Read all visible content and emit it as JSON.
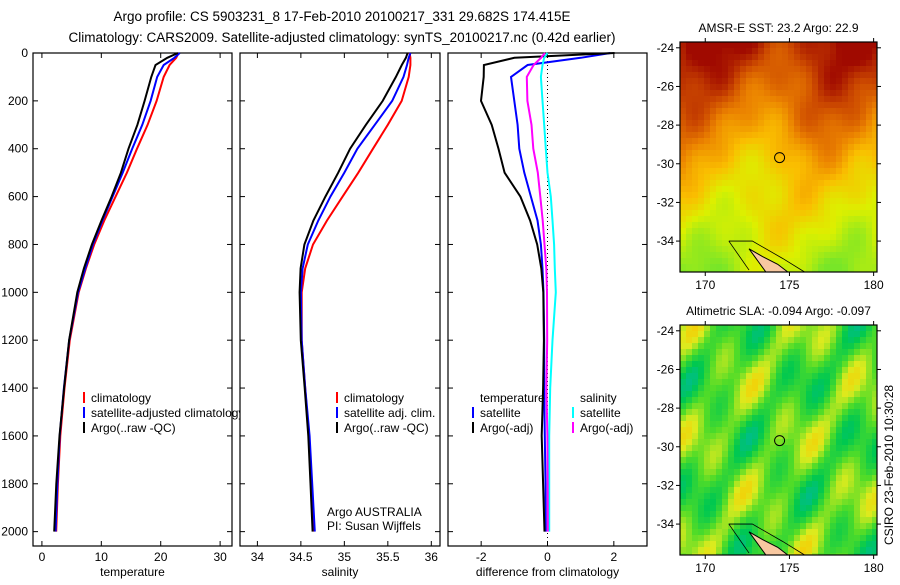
{
  "title_line1": "Argo profile: CS 5903231_8 17-Feb-2010 20100217_331 29.682S 174.415E",
  "title_line2": "Climatology: CARS2009. Satellite-adjusted climatology: synTS_20100217.nc (0.42d earlier)",
  "credit": "CSIRO 23-Feb-2010 10:30:28",
  "colors": {
    "climatology": "#ff0000",
    "satellite": "#0000ff",
    "argo": "#000000",
    "sal_satellite": "#00ffff",
    "sal_argo": "#ff00ff"
  },
  "chart_data": [
    {
      "type": "line",
      "xlabel": "temperature",
      "ylabel": "",
      "xlim": [
        -1.5,
        32
      ],
      "ylim": [
        2060,
        0
      ],
      "xticks": [
        0,
        10,
        20,
        30
      ],
      "yticks": [
        0,
        200,
        400,
        600,
        800,
        1000,
        1200,
        1400,
        1600,
        1800,
        2000
      ],
      "depth": [
        0,
        20,
        50,
        100,
        200,
        300,
        400,
        500,
        600,
        700,
        800,
        900,
        1000,
        1200,
        1400,
        1600,
        1800,
        2000
      ],
      "series": [
        {
          "name": "climatology",
          "color": "#ff0000",
          "values": [
            23.0,
            22.6,
            21.5,
            20.5,
            19.3,
            17.8,
            16.0,
            14.3,
            12.4,
            10.5,
            8.8,
            7.4,
            6.2,
            4.7,
            3.8,
            3.1,
            2.7,
            2.4
          ]
        },
        {
          "name": "satellite-adjusted climatology",
          "color": "#0000ff",
          "values": [
            23.2,
            22.3,
            20.5,
            19.4,
            18.3,
            16.9,
            15.2,
            13.6,
            11.9,
            10.2,
            8.6,
            7.3,
            6.1,
            4.6,
            3.7,
            3.0,
            2.6,
            2.3
          ]
        },
        {
          "name": "Argo(..raw -QC)",
          "color": "#000000",
          "values": [
            22.9,
            21.0,
            19.0,
            18.4,
            17.4,
            16.2,
            14.6,
            13.2,
            11.6,
            10.0,
            8.5,
            7.2,
            6.0,
            4.5,
            3.6,
            2.9,
            2.5,
            2.2
          ]
        }
      ],
      "legend": [
        "climatology",
        "satellite-adjusted climatology",
        "Argo(..raw -QC)"
      ]
    },
    {
      "type": "line",
      "xlabel": "salinity",
      "xlim": [
        33.8,
        36.1
      ],
      "ylim": [
        2060,
        0
      ],
      "xticks": [
        34,
        34.5,
        35,
        35.5,
        36
      ],
      "depth": [
        0,
        20,
        50,
        100,
        200,
        300,
        400,
        500,
        600,
        700,
        800,
        900,
        1000,
        1200,
        1400,
        1600,
        1800,
        2000
      ],
      "series": [
        {
          "name": "climatology",
          "color": "#ff0000",
          "values": [
            35.75,
            35.76,
            35.76,
            35.74,
            35.66,
            35.5,
            35.33,
            35.16,
            34.98,
            34.8,
            34.64,
            34.55,
            34.51,
            34.51,
            34.55,
            34.59,
            34.62,
            34.65
          ]
        },
        {
          "name": "satellite adj. clim.",
          "color": "#0000ff",
          "values": [
            35.76,
            35.74,
            35.72,
            35.68,
            35.55,
            35.35,
            35.15,
            35.0,
            34.84,
            34.7,
            34.58,
            34.52,
            34.5,
            34.51,
            34.55,
            34.6,
            34.63,
            34.66
          ]
        },
        {
          "name": "Argo(..raw -QC)",
          "color": "#000000",
          "values": [
            35.72,
            35.7,
            35.66,
            35.6,
            35.45,
            35.25,
            35.06,
            34.92,
            34.78,
            34.65,
            34.55,
            34.5,
            34.48,
            34.49,
            34.54,
            34.59,
            34.62,
            34.64
          ]
        }
      ],
      "legend": [
        "climatology",
        "satellite adj. clim.",
        "Argo(..raw -QC)"
      ],
      "annotation": [
        "Argo AUSTRALIA",
        "PI: Susan Wijffels"
      ]
    },
    {
      "type": "line",
      "xlabel": "difference from climatology",
      "xlim": [
        -3,
        3
      ],
      "ylim": [
        2060,
        0
      ],
      "xticks": [
        -2,
        0,
        2
      ],
      "depth": [
        0,
        20,
        50,
        100,
        200,
        300,
        400,
        500,
        600,
        700,
        800,
        900,
        1000,
        1200,
        1400,
        1600,
        1800,
        2000
      ],
      "series": [
        {
          "name": "temperature satellite",
          "color": "#0000ff",
          "values": [
            1.9,
            1.0,
            -0.6,
            -1.1,
            -1.0,
            -0.9,
            -0.85,
            -0.7,
            -0.5,
            -0.3,
            -0.2,
            -0.15,
            -0.12,
            -0.1,
            -0.1,
            -0.08,
            -0.06,
            -0.05
          ]
        },
        {
          "name": "temperature Argo(-adj)",
          "color": "#000000",
          "values": [
            2.0,
            -1.0,
            -1.9,
            -1.9,
            -2.0,
            -1.7,
            -1.5,
            -1.3,
            -0.8,
            -0.5,
            -0.3,
            -0.2,
            -0.15,
            -0.12,
            -0.12,
            -0.15,
            -0.12,
            -0.1
          ]
        },
        {
          "name": "salinity satellite",
          "color": "#00ffff",
          "values": [
            0.0,
            -0.1,
            -0.15,
            -0.2,
            -0.15,
            -0.1,
            -0.05,
            0.0,
            0.1,
            0.15,
            0.2,
            0.22,
            0.25,
            0.15,
            0.08,
            0.05,
            0.05,
            0.05
          ]
        },
        {
          "name": "salinity Argo(-adj)",
          "color": "#ff00ff",
          "values": [
            -0.1,
            -0.2,
            -0.4,
            -0.6,
            -0.6,
            -0.5,
            -0.45,
            -0.3,
            -0.2,
            -0.12,
            -0.08,
            -0.05,
            -0.04,
            -0.02,
            -0.02,
            0.02,
            0.02,
            0.0
          ]
        }
      ],
      "legend_groups": [
        {
          "heading": "temperature",
          "items": [
            "satellite",
            "Argo(-adj)"
          ]
        },
        {
          "heading": "salinity",
          "items": [
            "satellite",
            "Argo(-adj)"
          ]
        }
      ]
    },
    {
      "type": "heatmap",
      "title": "AMSR-E SST: 23.2 Argo: 22.9",
      "xlim": [
        168.5,
        180.2
      ],
      "ylim": [
        -35.6,
        -23.7
      ],
      "xticks": [
        170,
        175,
        180
      ],
      "yticks": [
        -24,
        -26,
        -28,
        -30,
        -32,
        -34
      ],
      "marker": {
        "lon": 174.415,
        "lat": -29.682
      }
    },
    {
      "type": "heatmap",
      "title": "Altimetric SLA: -0.094 Argo: -0.097",
      "xlim": [
        168.5,
        180.2
      ],
      "ylim": [
        -35.6,
        -23.7
      ],
      "xticks": [
        170,
        175,
        180
      ],
      "yticks": [
        -24,
        -26,
        -28,
        -30,
        -32,
        -34
      ],
      "marker": {
        "lon": 174.415,
        "lat": -29.682
      }
    }
  ]
}
